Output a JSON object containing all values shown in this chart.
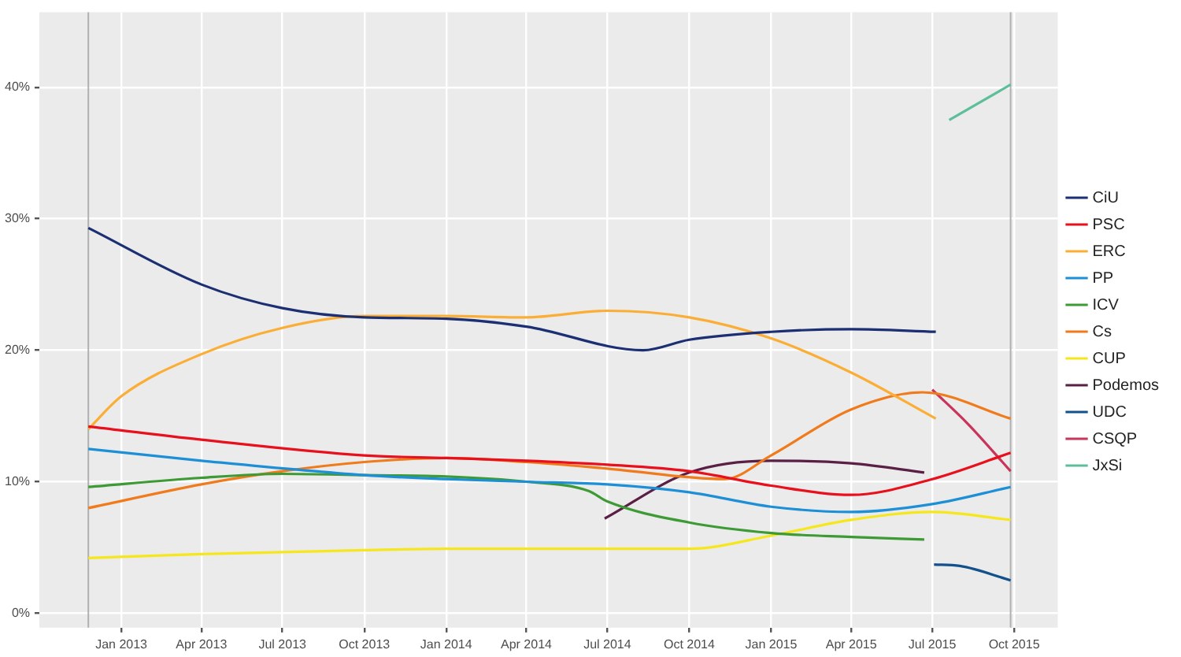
{
  "chart_data": {
    "type": "line",
    "xlim": [
      "2012-10-01",
      "2015-11-19"
    ],
    "ylim": [
      -1.1,
      45.7
    ],
    "xticks": [
      {
        "value": "2013-01-01",
        "label": "Jan 2013"
      },
      {
        "value": "2013-04-01",
        "label": "Apr 2013"
      },
      {
        "value": "2013-07-01",
        "label": "Jul 2013"
      },
      {
        "value": "2013-10-01",
        "label": "Oct 2013"
      },
      {
        "value": "2014-01-01",
        "label": "Jan 2014"
      },
      {
        "value": "2014-04-01",
        "label": "Apr 2014"
      },
      {
        "value": "2014-07-01",
        "label": "Jul 2014"
      },
      {
        "value": "2014-10-01",
        "label": "Oct 2014"
      },
      {
        "value": "2015-01-01",
        "label": "Jan 2015"
      },
      {
        "value": "2015-04-01",
        "label": "Apr 2015"
      },
      {
        "value": "2015-07-01",
        "label": "Jul 2015"
      },
      {
        "value": "2015-10-01",
        "label": "Oct 2015"
      }
    ],
    "yticks": [
      {
        "value": 0,
        "label": "0%"
      },
      {
        "value": 10,
        "label": "10%"
      },
      {
        "value": 20,
        "label": "20%"
      },
      {
        "value": 30,
        "label": "30%"
      },
      {
        "value": 40,
        "label": "40%"
      }
    ],
    "grid": true,
    "legend": "right",
    "marker": "none",
    "line_style": "solid",
    "ref_lines": [
      {
        "axis": "x",
        "value": "2012-11-25",
        "color": "#b0b0b0"
      },
      {
        "axis": "x",
        "value": "2015-09-27",
        "color": "#b0b0b0"
      }
    ],
    "series": [
      {
        "name": "CiU",
        "color": "#1b2f72",
        "x": [
          "2012-11-25",
          "2013-04-01",
          "2013-07-01",
          "2013-10-01",
          "2014-01-01",
          "2014-04-01",
          "2014-08-10",
          "2014-10-01",
          "2015-01-01",
          "2015-04-01",
          "2015-07-05"
        ],
        "values": [
          29.3,
          25,
          23.2,
          22.5,
          22.4,
          21.8,
          20,
          20.8,
          21.4,
          21.6,
          21.4
        ]
      },
      {
        "name": "PSC",
        "color": "#e8101c",
        "x": [
          "2012-11-25",
          "2013-04-01",
          "2013-10-01",
          "2014-01-01",
          "2014-04-01",
          "2014-07-01",
          "2014-10-01",
          "2015-01-01",
          "2015-04-01",
          "2015-07-01",
          "2015-09-27"
        ],
        "values": [
          14.2,
          13.2,
          12,
          11.8,
          11.6,
          11.3,
          10.8,
          9.7,
          9,
          10.2,
          12.2
        ]
      },
      {
        "name": "ERC",
        "color": "#fbae36",
        "x": [
          "2012-11-25",
          "2013-01-01",
          "2013-04-01",
          "2013-07-01",
          "2013-10-01",
          "2014-01-01",
          "2014-04-01",
          "2014-07-01",
          "2014-10-01",
          "2015-01-01",
          "2015-04-01",
          "2015-07-05"
        ],
        "values": [
          14,
          16.5,
          19.7,
          21.7,
          22.6,
          22.6,
          22.5,
          23,
          22.5,
          20.9,
          18.3,
          14.8
        ]
      },
      {
        "name": "PP",
        "color": "#1d8fd6",
        "x": [
          "2012-11-25",
          "2013-04-01",
          "2013-10-01",
          "2014-01-01",
          "2014-04-01",
          "2014-07-01",
          "2014-10-01",
          "2015-01-01",
          "2015-04-01",
          "2015-07-01",
          "2015-09-27"
        ],
        "values": [
          12.5,
          11.6,
          10.5,
          10.2,
          10,
          9.8,
          9.2,
          8.1,
          7.7,
          8.3,
          9.6
        ]
      },
      {
        "name": "ICV",
        "color": "#3d9a35",
        "x": [
          "2012-11-25",
          "2013-04-01",
          "2013-07-01",
          "2013-10-01",
          "2014-01-01",
          "2014-04-01",
          "2014-06-10",
          "2014-07-01",
          "2014-10-01",
          "2015-01-01",
          "2015-04-01",
          "2015-06-22"
        ],
        "values": [
          9.6,
          10.3,
          10.6,
          10.5,
          10.4,
          10,
          9.3,
          8.5,
          6.9,
          6.1,
          5.8,
          5.6
        ]
      },
      {
        "name": "Cs",
        "color": "#f07b1c",
        "x": [
          "2012-11-25",
          "2013-04-01",
          "2013-07-01",
          "2013-10-01",
          "2014-01-01",
          "2014-04-01",
          "2014-07-01",
          "2014-11-10",
          "2015-01-01",
          "2015-04-01",
          "2015-06-20",
          "2015-09-27"
        ],
        "values": [
          8,
          9.8,
          10.8,
          11.5,
          11.8,
          11.5,
          11,
          10.2,
          12,
          15.5,
          16.8,
          14.8
        ]
      },
      {
        "name": "CUP",
        "color": "#f6e71c",
        "x": [
          "2012-11-25",
          "2013-04-01",
          "2013-10-01",
          "2014-01-01",
          "2014-07-01",
          "2014-10-01",
          "2015-01-01",
          "2015-04-01",
          "2015-07-01",
          "2015-09-27"
        ],
        "values": [
          4.2,
          4.5,
          4.8,
          4.9,
          4.9,
          4.9,
          5.9,
          7.1,
          7.7,
          7.1
        ]
      },
      {
        "name": "Podemos",
        "color": "#5a1f45",
        "x": [
          "2014-06-28",
          "2014-10-01",
          "2015-01-01",
          "2015-04-01",
          "2015-06-22"
        ],
        "values": [
          7.2,
          10.7,
          11.6,
          11.4,
          10.7
        ]
      },
      {
        "name": "UDC",
        "color": "#12518c",
        "x": [
          "2015-07-03",
          "2015-08-01",
          "2015-09-27"
        ],
        "values": [
          3.7,
          3.6,
          2.5
        ]
      },
      {
        "name": "CSQP",
        "color": "#c8345a",
        "x": [
          "2015-07-01",
          "2015-08-10",
          "2015-09-27"
        ],
        "values": [
          17,
          14.4,
          10.8
        ]
      },
      {
        "name": "JxSi",
        "color": "#5cbf9a",
        "x": [
          "2015-07-20",
          "2015-09-27"
        ],
        "values": [
          37.5,
          40.2
        ]
      }
    ]
  }
}
